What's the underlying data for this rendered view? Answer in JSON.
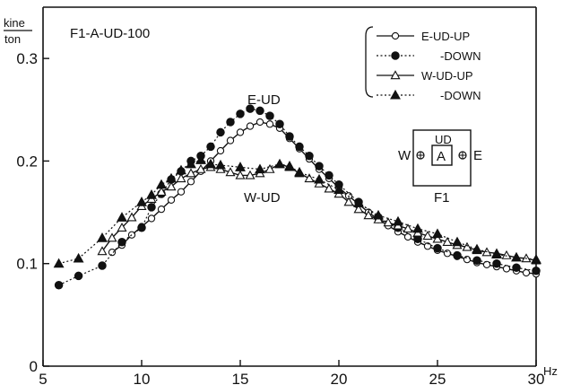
{
  "chart_data": {
    "type": "line",
    "title": "F1-A-UD-100",
    "ylabel_num": "kine",
    "ylabel_den": "ton",
    "xunit": "Hz",
    "xlim": [
      5,
      30
    ],
    "ylim": [
      0,
      0.35
    ],
    "xticks": [
      "5",
      "10",
      "15",
      "20",
      "25",
      "30"
    ],
    "yticks": [
      "0",
      "0.1",
      "0.2",
      "0.3"
    ],
    "grid": false,
    "legend_position": "top-right",
    "annotations": [
      "E-UD",
      "W-UD"
    ],
    "inset": {
      "top": "UD",
      "left": "W",
      "right": "E",
      "center": "A",
      "bottom": "F1"
    },
    "series": [
      {
        "name": "E-UD-UP",
        "style": "solid",
        "marker": "open-circle",
        "x": [
          8.5,
          9,
          9.5,
          10,
          10.5,
          11,
          11.5,
          12,
          12.5,
          13,
          13.5,
          14,
          14.5,
          15,
          15.5,
          16,
          16.5,
          17,
          17.5,
          18,
          18.5,
          19,
          19.5,
          20,
          20.5,
          21,
          21.5,
          22,
          22.5,
          23,
          23.5,
          24,
          24.5,
          25,
          25.5,
          26,
          26.5,
          27,
          27.5,
          28,
          28.5,
          29,
          29.5,
          30
        ],
        "y": [
          0.111,
          0.118,
          0.128,
          0.136,
          0.144,
          0.153,
          0.162,
          0.17,
          0.18,
          0.19,
          0.2,
          0.21,
          0.22,
          0.228,
          0.234,
          0.238,
          0.236,
          0.232,
          0.222,
          0.212,
          0.202,
          0.192,
          0.183,
          0.174,
          0.166,
          0.158,
          0.15,
          0.143,
          0.137,
          0.131,
          0.126,
          0.121,
          0.117,
          0.113,
          0.11,
          0.107,
          0.104,
          0.101,
          0.099,
          0.097,
          0.095,
          0.093,
          0.091,
          0.09
        ]
      },
      {
        "name": "-DOWN",
        "style": "dotted",
        "marker": "filled-circle",
        "x": [
          5.8,
          6.8,
          8,
          9,
          10,
          10.5,
          11,
          11.5,
          12,
          12.5,
          13,
          13.5,
          14,
          14.5,
          15,
          15.5,
          16,
          16.5,
          17,
          17.5,
          18,
          18.5,
          19,
          19.5,
          20,
          21,
          22,
          23,
          24,
          25,
          26,
          27,
          28,
          29,
          30
        ],
        "y": [
          0.079,
          0.088,
          0.098,
          0.121,
          0.135,
          0.155,
          0.168,
          0.182,
          0.19,
          0.2,
          0.205,
          0.214,
          0.228,
          0.238,
          0.246,
          0.251,
          0.249,
          0.244,
          0.236,
          0.224,
          0.214,
          0.205,
          0.195,
          0.186,
          0.177,
          0.16,
          0.145,
          0.135,
          0.124,
          0.115,
          0.108,
          0.103,
          0.1,
          0.096,
          0.093
        ]
      },
      {
        "name": "W-UD-UP",
        "style": "solid",
        "marker": "open-triangle",
        "x": [
          8,
          8.5,
          9,
          9.5,
          10,
          10.5,
          11,
          11.5,
          12,
          12.5,
          13,
          13.5,
          14,
          14.5,
          15,
          15.5,
          16,
          16.5,
          17,
          17.5,
          18,
          18.5,
          19,
          19.5,
          20,
          20.5,
          21,
          21.5,
          22,
          22.5,
          23,
          23.5,
          24,
          24.5,
          25,
          25.5,
          26,
          26.5,
          27,
          27.5,
          28,
          28.5,
          29,
          29.5,
          30
        ],
        "y": [
          0.112,
          0.125,
          0.135,
          0.145,
          0.156,
          0.163,
          0.17,
          0.175,
          0.183,
          0.188,
          0.192,
          0.194,
          0.192,
          0.189,
          0.186,
          0.186,
          0.188,
          0.192,
          0.197,
          0.194,
          0.188,
          0.183,
          0.178,
          0.173,
          0.168,
          0.16,
          0.153,
          0.147,
          0.143,
          0.14,
          0.137,
          0.134,
          0.13,
          0.127,
          0.124,
          0.121,
          0.118,
          0.116,
          0.113,
          0.111,
          0.11,
          0.108,
          0.106,
          0.105,
          0.103
        ]
      },
      {
        "name": "-DOWN",
        "style": "dotted",
        "marker": "filled-triangle",
        "x": [
          5.8,
          6.8,
          8,
          9,
          10,
          10.5,
          11,
          11.5,
          12,
          12.5,
          13,
          13.5,
          14,
          15,
          16,
          17,
          17.5,
          18,
          19,
          20,
          21,
          22,
          23,
          24,
          25,
          26,
          27,
          28,
          29,
          30
        ],
        "y": [
          0.1,
          0.105,
          0.125,
          0.145,
          0.16,
          0.167,
          0.177,
          0.183,
          0.191,
          0.197,
          0.201,
          0.197,
          0.196,
          0.194,
          0.192,
          0.197,
          0.195,
          0.189,
          0.182,
          0.172,
          0.159,
          0.147,
          0.141,
          0.134,
          0.129,
          0.121,
          0.114,
          0.109,
          0.106,
          0.104
        ]
      }
    ]
  }
}
